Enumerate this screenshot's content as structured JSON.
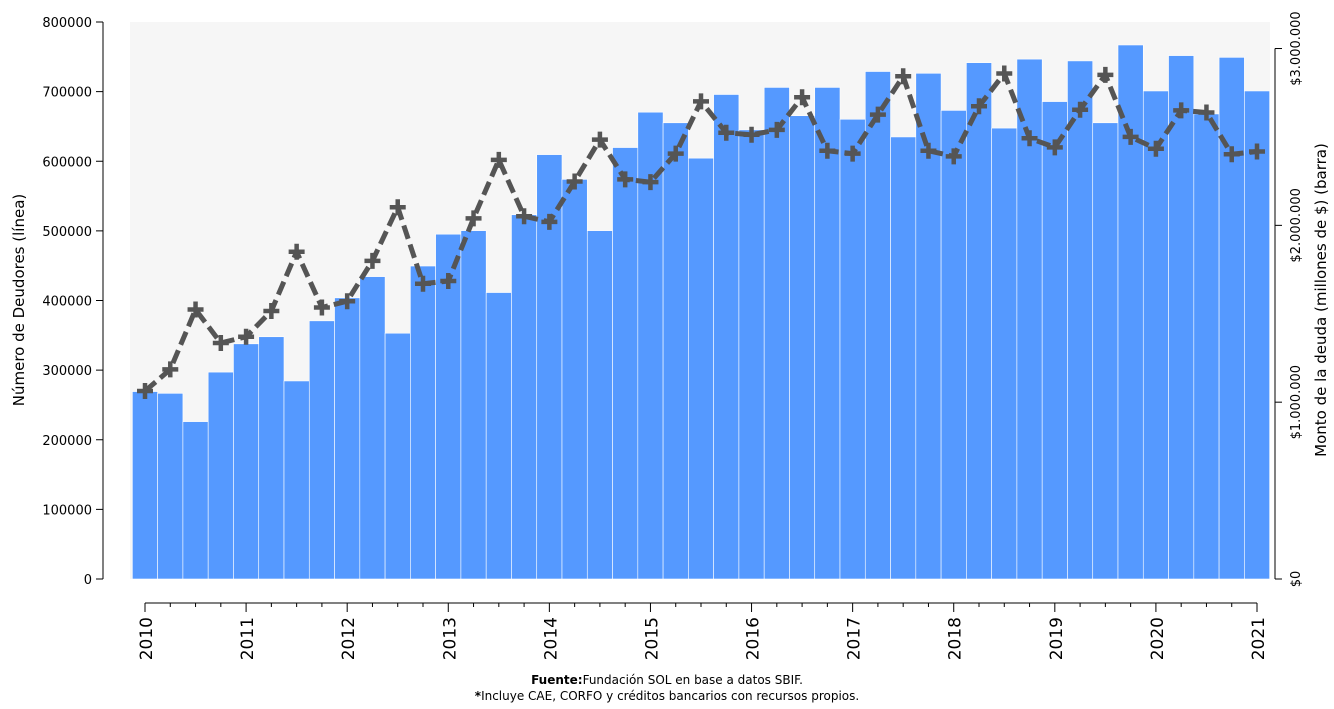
{
  "chart_data": {
    "type": "bar-line",
    "y_label": "Número de Deudores (línea)",
    "y2_label": "Monto de la deuda (millones de $) (barra)",
    "source_label": "Fuente:",
    "source": "Fundación SOL en base a datos SBIF.",
    "note_mark": "*",
    "note": "Incluye CAE, CORFO y créditos bancarios con recursos propios.",
    "categories": [
      "2010",
      null,
      null,
      null,
      "2011",
      null,
      null,
      null,
      "2012",
      null,
      null,
      null,
      "2013",
      null,
      null,
      null,
      "2014",
      null,
      null,
      null,
      "2015",
      null,
      null,
      null,
      "2016",
      null,
      null,
      null,
      "2017",
      null,
      null,
      null,
      "2018",
      null,
      null,
      null,
      "2019",
      null,
      null,
      null,
      "2020",
      null,
      null,
      null,
      "2021"
    ],
    "series": [
      {
        "name": "Monto de la deuda",
        "kind": "bar",
        "axis": "y2",
        "color": "#5599ff",
        "values": [
          1060000,
          1050000,
          890000,
          1170000,
          1330000,
          1370000,
          1120000,
          1460000,
          1590000,
          1710000,
          1390000,
          1770000,
          1950000,
          1970000,
          1620000,
          2060000,
          2400000,
          2260000,
          1970000,
          2440000,
          2640000,
          2580000,
          2380000,
          2740000,
          2540000,
          2780000,
          2620000,
          2780000,
          2600000,
          2870000,
          2500000,
          2860000,
          2650000,
          2920000,
          2550000,
          2940000,
          2700000,
          2930000,
          2580000,
          3020000,
          2760000,
          2960000,
          2630000,
          2950000,
          2760000
        ]
      },
      {
        "name": "Número de Deudores",
        "kind": "line",
        "axis": "y",
        "color": "#555555",
        "values": [
          270000,
          301000,
          387000,
          339000,
          348000,
          385000,
          470000,
          390000,
          399000,
          457000,
          534000,
          424000,
          428000,
          518000,
          602000,
          521000,
          513000,
          571000,
          631000,
          574000,
          570000,
          611000,
          686000,
          641000,
          638000,
          645000,
          692000,
          615000,
          611000,
          667000,
          722000,
          615000,
          607000,
          679000,
          726000,
          633000,
          620000,
          674000,
          724000,
          635000,
          618000,
          673000,
          670000,
          610000,
          614000
        ]
      }
    ],
    "ylim": [
      0,
      800000
    ],
    "yticks": [
      0,
      100000,
      200000,
      300000,
      400000,
      500000,
      600000,
      700000,
      800000
    ],
    "y2lim": [
      0,
      3150000
    ],
    "y2ticks": [
      {
        "value": 0,
        "label": "$0"
      },
      {
        "value": 1000000,
        "label": "$1.000.000"
      },
      {
        "value": 2000000,
        "label": "$2.000.000"
      },
      {
        "value": 3000000,
        "label": "$3.000.000"
      }
    ]
  }
}
